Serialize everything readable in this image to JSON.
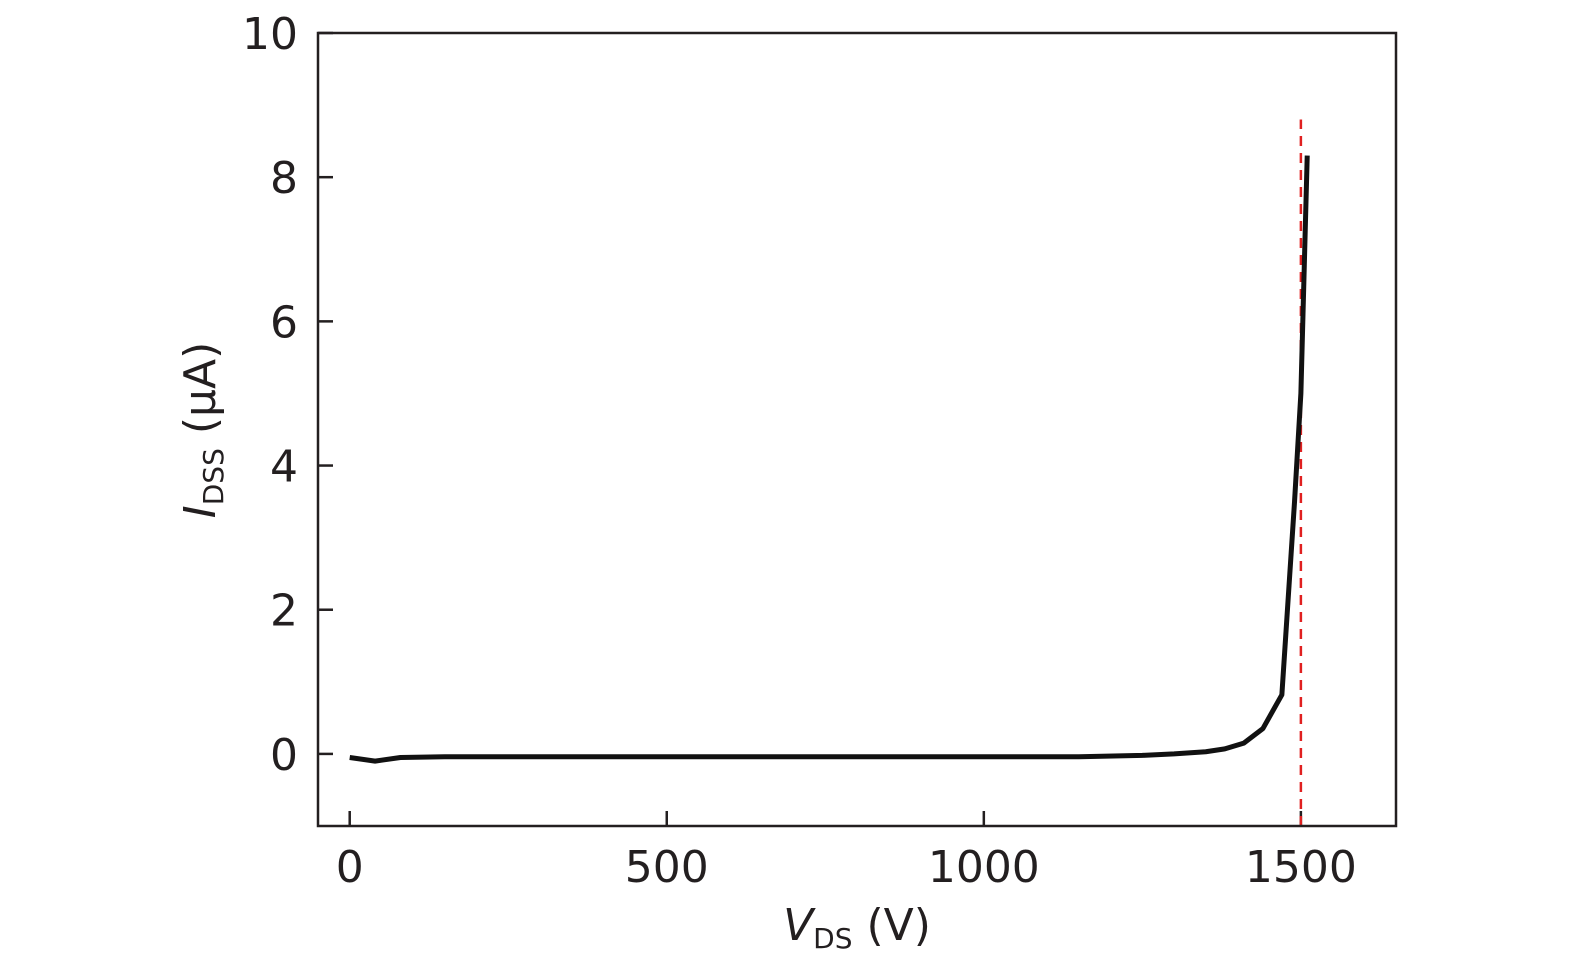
{
  "chart_data": {
    "type": "line",
    "x_label": {
      "main": "V",
      "sub": "DS",
      "rest": " (V)"
    },
    "y_label": {
      "main": "I",
      "sub": "DSS",
      "rest": " (μA)"
    },
    "series": [
      {
        "color": "#111111",
        "x": [
          0,
          40,
          80,
          150,
          300,
          500,
          700,
          900,
          1050,
          1150,
          1250,
          1300,
          1350,
          1380,
          1410,
          1440,
          1470,
          1490,
          1500,
          1510
        ],
        "values": [
          -0.05,
          -0.1,
          -0.05,
          -0.04,
          -0.04,
          -0.04,
          -0.04,
          -0.04,
          -0.04,
          -0.04,
          -0.02,
          0,
          0.03,
          0.07,
          0.15,
          0.35,
          0.82,
          3.5,
          5,
          8.3
        ]
      }
    ],
    "reference_line": {
      "x": 1500,
      "y": [
        -1,
        8.8
      ],
      "color": "#e02020",
      "dashed": true
    },
    "xlim": [
      -50,
      1650
    ],
    "xticks": [
      0,
      500,
      1000,
      1500
    ],
    "ylim": [
      -1,
      10
    ],
    "yticks": [
      0,
      2,
      4,
      6,
      8,
      10
    ],
    "grid": false
  }
}
